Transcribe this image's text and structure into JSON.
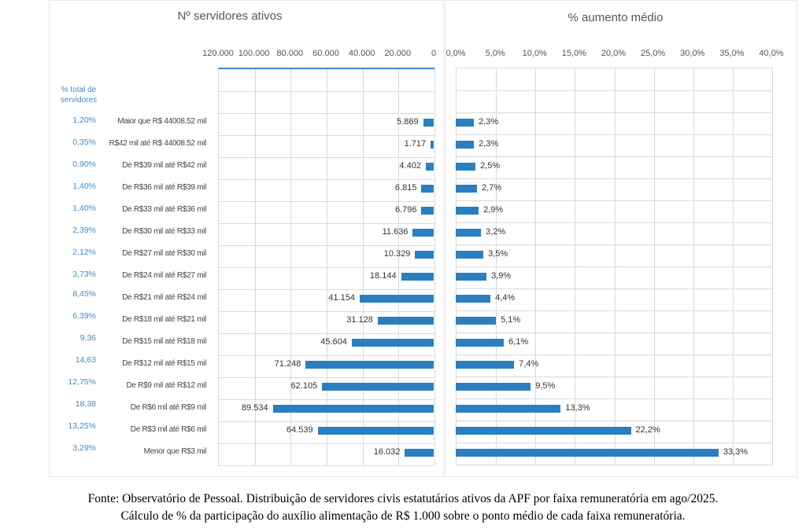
{
  "chart_data": [
    {
      "type": "bar",
      "orientation": "horizontal",
      "direction": "reversed",
      "title": "Nº servidores ativos",
      "xlim": [
        0,
        120000
      ],
      "xticks": [
        "120.000",
        "100.000",
        "80.000",
        "60.000",
        "40.000",
        "20.000",
        "0"
      ],
      "categories": [
        "Maior que R$ 44008.52 mil",
        "R$42 mil até R$ 44008.52 mil",
        "De R$39 mil até R$42 mil",
        "De R$36 mil até R$39 mil",
        "De R$33 mil até R$36 mil",
        "De R$30 mil até R$33 mil",
        "De R$27 mil até R$30 mil",
        "De R$24 mil até R$27 mil",
        "De R$21 mil até R$24 mil",
        "De R$18 mil até R$21 mil",
        "De R$15 mil até R$18 mil",
        "De R$12 mil até R$15 mil",
        "De R$9 mil até R$12 mil",
        "De R$6 mil até R$9 mil",
        "De R$3 mil até R$6 mil",
        "Menor que R$3 mil"
      ],
      "values": [
        5869,
        1717,
        4402,
        6815,
        6796,
        11636,
        10329,
        18144,
        41154,
        31128,
        45604,
        71248,
        62105,
        89534,
        64539,
        16032
      ],
      "labels": [
        "5.869",
        "1.717",
        "4.402",
        "6.815",
        "6.796",
        "11.636",
        "10.329",
        "18.144",
        "41.154",
        "31.128",
        "45.604",
        "71.248",
        "62.105",
        "89.534",
        "64.539",
        "16.032"
      ],
      "color": "#2a7fc1",
      "grid": true
    },
    {
      "type": "bar",
      "orientation": "horizontal",
      "title": "% aumento médio",
      "xlim": [
        0,
        40
      ],
      "xticks": [
        "0,0%",
        "5,0%",
        "10,0%",
        "15,0%",
        "20,0%",
        "25,0%",
        "30,0%",
        "35,0%",
        "40,0%"
      ],
      "values": [
        2.3,
        2.3,
        2.5,
        2.7,
        2.9,
        3.2,
        3.5,
        3.9,
        4.4,
        5.1,
        6.1,
        7.4,
        9.5,
        13.3,
        22.2,
        33.3
      ],
      "labels": [
        "2,3%",
        "2,3%",
        "2,5%",
        "2,7%",
        "2,9%",
        "3,2%",
        "3,5%",
        "3,9%",
        "4,4%",
        "5,1%",
        "6,1%",
        "7,4%",
        "9,5%",
        "13,3%",
        "22,2%",
        "33,3%"
      ],
      "color": "#2a7fc1",
      "grid": true
    }
  ],
  "share_column": {
    "header_line1": "% total de",
    "header_line2": "servidores",
    "values": [
      "1,20%",
      "0,35%",
      "0,90%",
      "1,40%",
      "1,40%",
      "2,39%",
      "2,12%",
      "3,73%",
      "8,45%",
      "6,39%",
      "9,36",
      "14,63",
      "12,75%",
      "18,38",
      "13,25%",
      "3,29%"
    ]
  },
  "caption": {
    "line1": "Fonte: Observatório de Pessoal. Distribuição de servidores civis estatutários ativos da APF por faixa remuneratória em ago/2025.",
    "line2": "Cálculo de % da participação do auxílio alimentação de R$ 1.000 sobre o ponto médio de cada faixa remuneratória."
  }
}
